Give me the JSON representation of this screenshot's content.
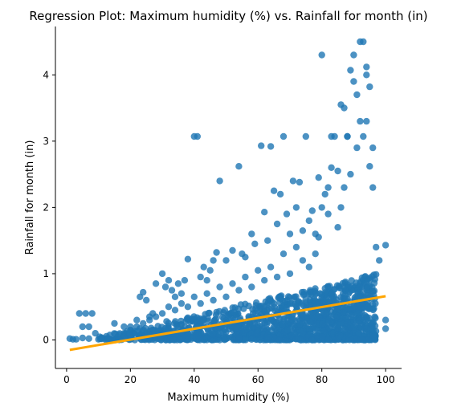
{
  "chart_data": {
    "type": "scatter",
    "title": "Regression Plot: Maximum humidity (%) vs. Rainfall for month (in)",
    "xlabel": "Maximum humidity (%)",
    "ylabel": "Rainfall for month (in)",
    "xlim": [
      -3.5,
      105
    ],
    "ylim": [
      -0.43,
      4.73
    ],
    "xticks": [
      0,
      20,
      40,
      60,
      80,
      100
    ],
    "yticks": [
      0,
      1,
      2,
      3,
      4
    ],
    "grid": false,
    "point_color": "#1f77b4",
    "line_color": "#ffa500",
    "regression": {
      "x": [
        1,
        100
      ],
      "y": [
        -0.15,
        0.66
      ]
    },
    "series": [
      {
        "points": [
          [
            1,
            0.02
          ],
          [
            3,
            0.01
          ],
          [
            4,
            0.4
          ],
          [
            5,
            0.2
          ],
          [
            6,
            0.4
          ],
          [
            7,
            0.2
          ],
          [
            8,
            0.4
          ],
          [
            9,
            0.1
          ],
          [
            5,
            0.03
          ],
          [
            7,
            0.02
          ],
          [
            15,
            0.25
          ],
          [
            18,
            0.2
          ],
          [
            20,
            0.2
          ],
          [
            21,
            0.1
          ],
          [
            22,
            0.3
          ],
          [
            23,
            0.65
          ],
          [
            24,
            0.72
          ],
          [
            25,
            0.6
          ],
          [
            26,
            0.35
          ],
          [
            27,
            0.4
          ],
          [
            28,
            0.85
          ],
          [
            30,
            1.0
          ],
          [
            31,
            0.8
          ],
          [
            32,
            0.9
          ],
          [
            33,
            0.75
          ],
          [
            34,
            0.65
          ],
          [
            35,
            0.85
          ],
          [
            36,
            0.7
          ],
          [
            37,
            0.9
          ],
          [
            38,
            1.22
          ],
          [
            40,
            3.07
          ],
          [
            41,
            3.07
          ],
          [
            42,
            0.95
          ],
          [
            43,
            1.1
          ],
          [
            44,
            0.9
          ],
          [
            45,
            1.05
          ],
          [
            46,
            1.2
          ],
          [
            47,
            1.32
          ],
          [
            48,
            2.4
          ],
          [
            50,
            1.2
          ],
          [
            52,
            1.35
          ],
          [
            54,
            2.62
          ],
          [
            55,
            1.3
          ],
          [
            56,
            1.25
          ],
          [
            58,
            1.6
          ],
          [
            59,
            1.45
          ],
          [
            61,
            2.93
          ],
          [
            62,
            1.93
          ],
          [
            63,
            1.5
          ],
          [
            64,
            2.92
          ],
          [
            65,
            2.25
          ],
          [
            66,
            1.75
          ],
          [
            67,
            2.2
          ],
          [
            68,
            3.07
          ],
          [
            69,
            1.9
          ],
          [
            70,
            1.6
          ],
          [
            71,
            2.4
          ],
          [
            72,
            2.0
          ],
          [
            73,
            2.38
          ],
          [
            74,
            1.65
          ],
          [
            75,
            3.07
          ],
          [
            76,
            1.8
          ],
          [
            77,
            1.95
          ],
          [
            78,
            1.6
          ],
          [
            79,
            2.45
          ],
          [
            80,
            4.3
          ],
          [
            81,
            2.2
          ],
          [
            82,
            1.9
          ],
          [
            83,
            3.07
          ],
          [
            84,
            3.07
          ],
          [
            85,
            2.55
          ],
          [
            86,
            3.55
          ],
          [
            87,
            3.5
          ],
          [
            88,
            3.07
          ],
          [
            89,
            4.07
          ],
          [
            90,
            3.9
          ],
          [
            91,
            3.7
          ],
          [
            92,
            3.3
          ],
          [
            93,
            4.5
          ],
          [
            94,
            4.12
          ],
          [
            95,
            3.82
          ],
          [
            96,
            2.9
          ],
          [
            97,
            1.4
          ],
          [
            98,
            1.2
          ],
          [
            100,
            1.43
          ],
          [
            100,
            0.3
          ],
          [
            100,
            0.17
          ],
          [
            90,
            4.3
          ],
          [
            92,
            4.5
          ],
          [
            94,
            4.0
          ],
          [
            94,
            3.3
          ],
          [
            93,
            3.07
          ],
          [
            95,
            2.62
          ],
          [
            96,
            2.3
          ],
          [
            91,
            2.9
          ],
          [
            89,
            2.5
          ],
          [
            88,
            3.07
          ],
          [
            87,
            2.3
          ],
          [
            86,
            2.0
          ],
          [
            85,
            1.7
          ],
          [
            83,
            2.6
          ],
          [
            82,
            2.3
          ],
          [
            80,
            2.0
          ],
          [
            79,
            1.55
          ],
          [
            78,
            1.3
          ],
          [
            76,
            1.1
          ],
          [
            74,
            1.2
          ],
          [
            72,
            1.4
          ],
          [
            70,
            1.0
          ],
          [
            68,
            1.3
          ],
          [
            66,
            0.95
          ],
          [
            64,
            1.1
          ],
          [
            62,
            0.9
          ],
          [
            60,
            1.05
          ],
          [
            58,
            0.8
          ],
          [
            56,
            0.95
          ],
          [
            54,
            0.75
          ],
          [
            52,
            0.85
          ],
          [
            50,
            0.65
          ],
          [
            48,
            0.8
          ],
          [
            46,
            0.6
          ],
          [
            44,
            0.7
          ],
          [
            42,
            0.55
          ],
          [
            40,
            0.65
          ],
          [
            38,
            0.5
          ],
          [
            36,
            0.55
          ],
          [
            34,
            0.45
          ],
          [
            32,
            0.5
          ],
          [
            30,
            0.4
          ],
          [
            28,
            0.35
          ],
          [
            26,
            0.3
          ],
          [
            24,
            0.25
          ],
          [
            22,
            0.2
          ],
          [
            20,
            0.15
          ],
          [
            18,
            0.1
          ],
          [
            16,
            0.05
          ],
          [
            10,
            0.01
          ],
          [
            12,
            0.02
          ],
          [
            14,
            0.0
          ],
          [
            2,
            0.01
          ]
        ]
      }
    ]
  }
}
